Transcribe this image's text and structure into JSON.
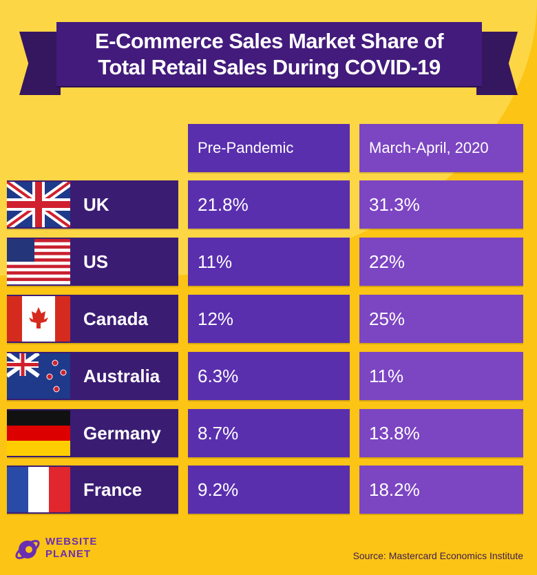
{
  "title_line1": "E-Commerce Sales Market Share of",
  "title_line2": "Total Retail Sales During COVID-19",
  "colors": {
    "background": "#fcc414",
    "banner": "#431b7c",
    "country_cell": "#3b1c73",
    "pre_pandemic_cell": "#5a2fae",
    "march_april_cell": "#7c45c2"
  },
  "chart_data": {
    "type": "table",
    "columns": [
      "Pre-Pandemic",
      "March-April, 2020"
    ],
    "rows": [
      {
        "country": "UK",
        "flag": "uk-flag",
        "values": [
          "21.8%",
          "31.3%"
        ]
      },
      {
        "country": "US",
        "flag": "us-flag",
        "values": [
          "11%",
          "22%"
        ]
      },
      {
        "country": "Canada",
        "flag": "canada-flag",
        "values": [
          "12%",
          "25%"
        ]
      },
      {
        "country": "Australia",
        "flag": "australia-flag",
        "values": [
          "6.3%",
          "11%"
        ]
      },
      {
        "country": "Germany",
        "flag": "germany-flag",
        "values": [
          "8.7%",
          "13.8%"
        ]
      },
      {
        "country": "France",
        "flag": "france-flag",
        "values": [
          "9.2%",
          "18.2%"
        ]
      }
    ]
  },
  "logo": {
    "line1": "WEBSITE",
    "line2": "PLANET"
  },
  "source": "Source: Mastercard Economics Institute"
}
